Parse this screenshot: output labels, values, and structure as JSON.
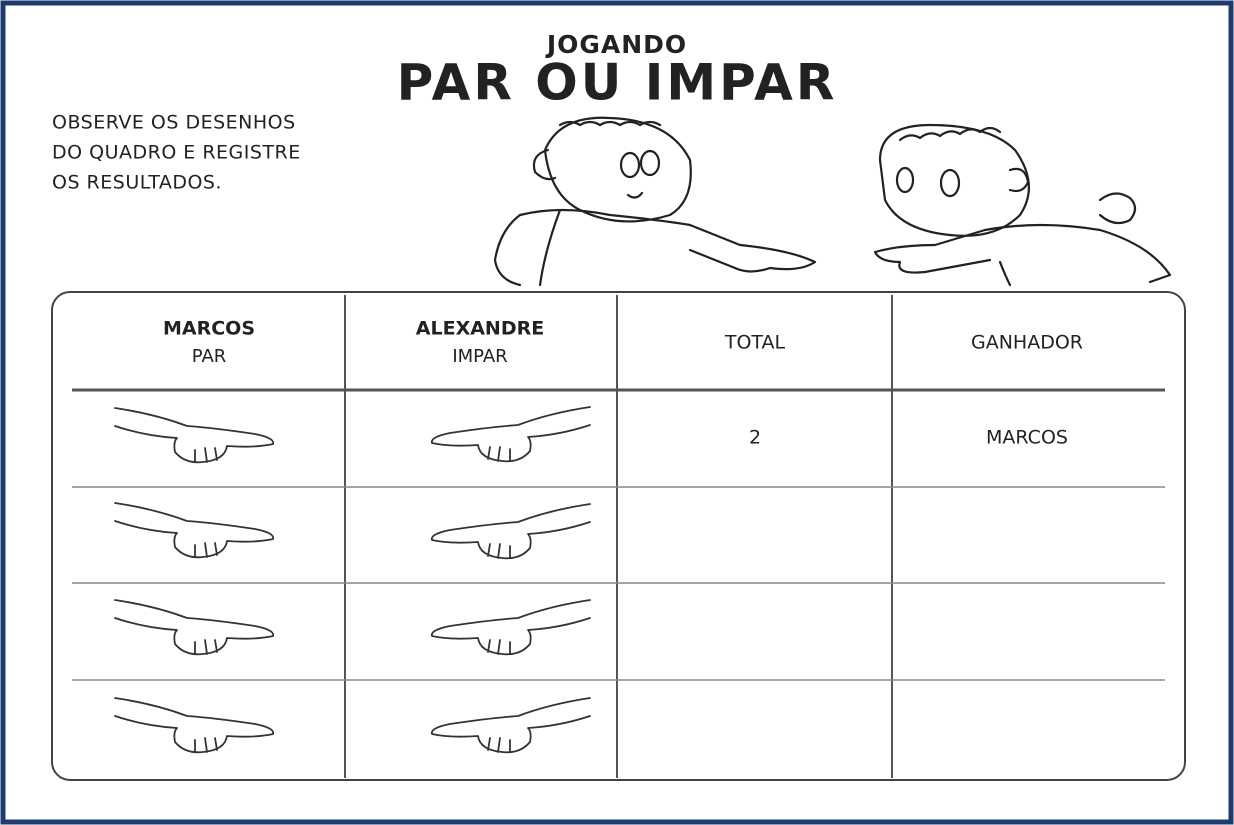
{
  "header": {
    "subtitle": "JOGANDO",
    "title": "PAR OU IMPAR"
  },
  "instructions": [
    "OBSERVE OS DESENHOS",
    "DO QUADRO E REGISTRE",
    "OS RESULTADOS."
  ],
  "table": {
    "columns": [
      {
        "name": "MARCOS",
        "choice": "PAR"
      },
      {
        "name": "ALEXANDRE",
        "choice": "IMPAR"
      },
      {
        "name": "TOTAL"
      },
      {
        "name": "GANHADOR"
      }
    ],
    "rows": [
      {
        "total": 2,
        "winner": "MARCOS"
      }
    ]
  }
}
